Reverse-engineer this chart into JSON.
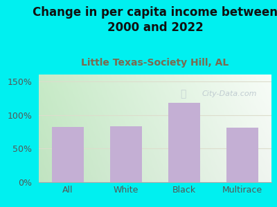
{
  "title": "Change in per capita income between\n2000 and 2022",
  "subtitle": "Little Texas-Society Hill, AL",
  "categories": [
    "All",
    "White",
    "Black",
    "Multirace"
  ],
  "values": [
    82,
    83,
    118,
    81
  ],
  "bar_color": "#c4afd4",
  "title_fontsize": 12,
  "subtitle_fontsize": 10,
  "subtitle_color": "#7a6a50",
  "title_color": "#111111",
  "background_color": "#00f0f0",
  "ylim": [
    0,
    160
  ],
  "yticks": [
    0,
    50,
    100,
    150
  ],
  "ytick_labels": [
    "0%",
    "50%",
    "100%",
    "150%"
  ],
  "grid_color": "#ddddcc",
  "watermark": "City-Data.com",
  "watermark_color": "#b8c4cc",
  "plot_bg_left": "#cce8cc",
  "plot_bg_right": "#f5f8f5"
}
